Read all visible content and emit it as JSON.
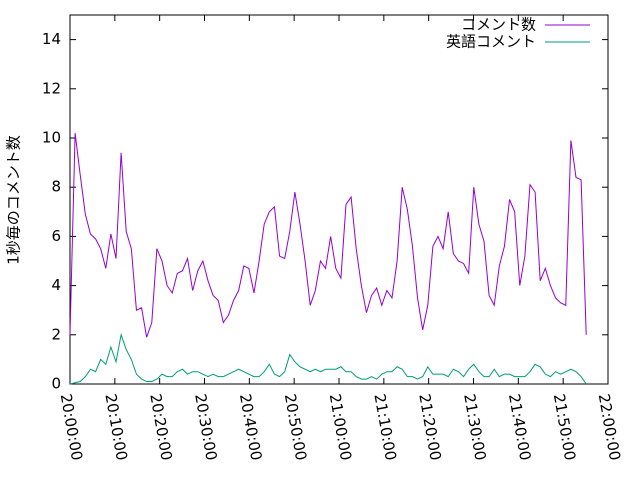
{
  "chart_data": {
    "type": "line",
    "ylabel": "1秒毎のコメント数",
    "x": [
      0,
      1.14,
      2.28,
      3.42,
      4.56,
      5.7,
      6.84,
      7.98,
      9.12,
      10.26,
      11.4,
      12.54,
      13.68,
      14.82,
      15.96,
      17.1,
      18.24,
      19.38,
      20.52,
      21.66,
      22.8,
      23.94,
      25.08,
      26.22,
      27.36,
      28.5,
      29.64,
      30.78,
      31.92,
      33.06,
      34.2,
      35.34,
      36.48,
      37.62,
      38.76,
      39.9,
      41.04,
      42.18,
      43.32,
      44.46,
      45.6,
      46.74,
      47.88,
      49.02,
      50.16,
      51.3,
      52.44,
      53.58,
      54.72,
      55.86,
      57,
      58.14,
      59.28,
      60.42,
      61.56,
      62.7,
      63.84,
      64.98,
      66.12,
      67.26,
      68.4,
      69.54,
      70.68,
      71.82,
      72.96,
      74.1,
      75.24,
      76.38,
      77.52,
      78.66,
      79.8,
      80.94,
      82.08,
      83.22,
      84.36,
      85.5,
      86.64,
      87.78,
      88.92,
      90.06,
      91.2,
      92.34,
      93.48,
      94.62,
      95.76,
      96.9,
      98.04,
      99.18,
      100.32,
      101.46,
      102.6,
      103.74,
      104.88,
      106.02,
      107.16,
      108.3,
      109.44,
      110.58,
      111.72,
      112.86,
      114,
      115.14
    ],
    "series": [
      {
        "name": "コメント数",
        "color": "#9400d3",
        "values": [
          2.0,
          10.2,
          8.5,
          6.9,
          6.1,
          5.9,
          5.5,
          4.7,
          6.1,
          5.1,
          9.4,
          6.2,
          5.5,
          3.0,
          3.1,
          1.9,
          2.5,
          5.5,
          5.0,
          4.0,
          3.7,
          4.5,
          4.6,
          5.1,
          3.8,
          4.6,
          5.0,
          4.2,
          3.6,
          3.4,
          2.5,
          2.8,
          3.4,
          3.8,
          4.8,
          4.7,
          3.7,
          5.0,
          6.5,
          7.0,
          7.2,
          5.2,
          5.1,
          6.2,
          7.8,
          6.5,
          5.0,
          3.2,
          3.8,
          5.0,
          4.7,
          6.0,
          4.7,
          4.3,
          7.3,
          7.6,
          5.5,
          4.0,
          2.9,
          3.6,
          3.9,
          3.2,
          3.8,
          3.5,
          5.0,
          8.0,
          7.1,
          5.6,
          3.5,
          2.2,
          3.2,
          5.6,
          6.0,
          5.5,
          7.0,
          5.3,
          5.0,
          4.9,
          4.5,
          8.0,
          6.5,
          5.8,
          3.6,
          3.2,
          4.8,
          5.6,
          7.5,
          7.0,
          4.0,
          5.2,
          8.1,
          7.8,
          4.2,
          4.7,
          4.0,
          3.5,
          3.3,
          3.2,
          9.9,
          8.4,
          8.3,
          2.0
        ]
      },
      {
        "name": "英語コメント",
        "color": "#009e73",
        "values": [
          0,
          0.05,
          0.1,
          0.3,
          0.6,
          0.5,
          1.0,
          0.8,
          1.5,
          0.9,
          2.0,
          1.4,
          1.0,
          0.4,
          0.2,
          0.1,
          0.1,
          0.2,
          0.4,
          0.3,
          0.3,
          0.5,
          0.6,
          0.4,
          0.5,
          0.5,
          0.4,
          0.3,
          0.4,
          0.3,
          0.3,
          0.4,
          0.5,
          0.6,
          0.5,
          0.4,
          0.3,
          0.3,
          0.5,
          0.8,
          0.4,
          0.3,
          0.5,
          1.2,
          0.9,
          0.7,
          0.6,
          0.5,
          0.6,
          0.5,
          0.6,
          0.6,
          0.6,
          0.7,
          0.5,
          0.5,
          0.3,
          0.2,
          0.2,
          0.3,
          0.2,
          0.4,
          0.5,
          0.5,
          0.7,
          0.6,
          0.3,
          0.3,
          0.2,
          0.3,
          0.7,
          0.4,
          0.4,
          0.4,
          0.3,
          0.6,
          0.5,
          0.3,
          0.6,
          0.8,
          0.5,
          0.3,
          0.3,
          0.6,
          0.3,
          0.4,
          0.4,
          0.3,
          0.3,
          0.3,
          0.5,
          0.8,
          0.7,
          0.4,
          0.3,
          0.5,
          0.4,
          0.5,
          0.6,
          0.5,
          0.3,
          0.0
        ]
      }
    ],
    "xlim": [
      0,
      120
    ],
    "xticks": [
      {
        "value": 0,
        "label": "20:00:00"
      },
      {
        "value": 10,
        "label": "20:10:00"
      },
      {
        "value": 20,
        "label": "20:20:00"
      },
      {
        "value": 30,
        "label": "20:30:00"
      },
      {
        "value": 40,
        "label": "20:40:00"
      },
      {
        "value": 50,
        "label": "20:50:00"
      },
      {
        "value": 60,
        "label": "21:00:00"
      },
      {
        "value": 70,
        "label": "21:10:00"
      },
      {
        "value": 80,
        "label": "21:20:00"
      },
      {
        "value": 90,
        "label": "21:30:00"
      },
      {
        "value": 100,
        "label": "21:40:00"
      },
      {
        "value": 110,
        "label": "21:50:00"
      },
      {
        "value": 120,
        "label": "22:00:00"
      }
    ],
    "ylim": [
      0,
      15
    ],
    "yticks": [
      0,
      2,
      4,
      6,
      8,
      10,
      12,
      14
    ],
    "legend": "top-right"
  }
}
